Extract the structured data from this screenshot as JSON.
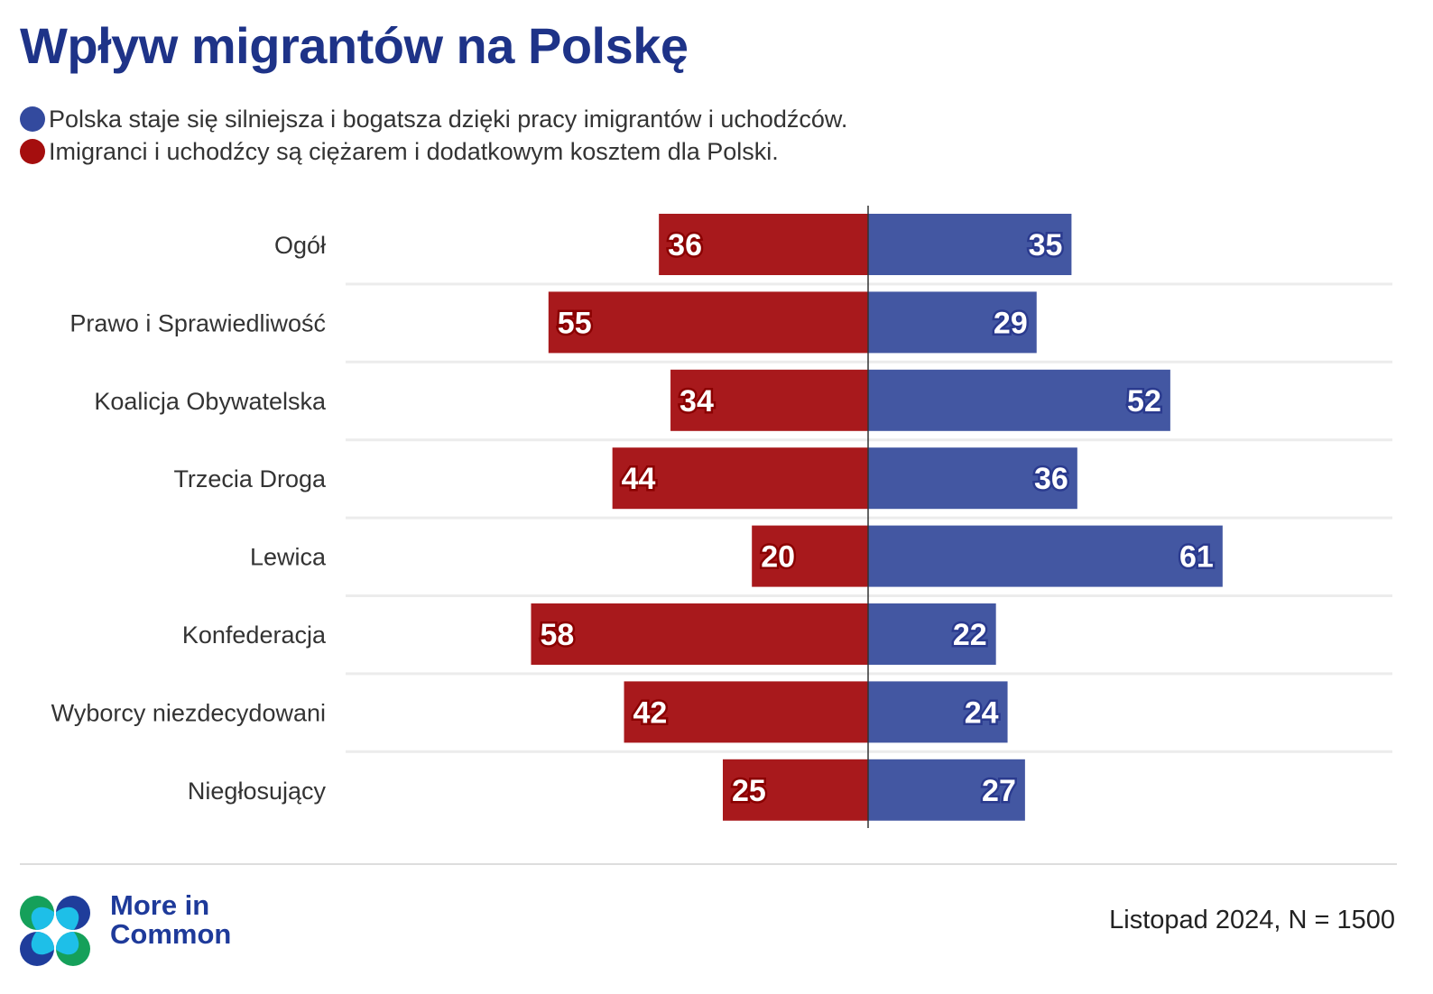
{
  "header": {
    "title": "Wpływ migrantów na Polskę"
  },
  "legend": [
    {
      "label": "Polska staje się silniejsza i bogatsza dzięki pracy imigrantów i uchodźców.",
      "color": "#334a9e"
    },
    {
      "label": "Imigranci i uchodźcy są ciężarem i dodatkowym kosztem dla Polski.",
      "color": "#a50e0e"
    }
  ],
  "chart_data": {
    "type": "bar",
    "orientation": "horizontal-diverging",
    "title": "Wpływ migrantów na Polskę",
    "categories": [
      "Ogół",
      "Prawo i Sprawiedliwość",
      "Koalicja Obywatelska",
      "Trzecia Droga",
      "Lewica",
      "Konfederacja",
      "Wyborcy niezdecydowani",
      "Niegłosujący"
    ],
    "series": [
      {
        "name": "Imigranci i uchodźcy są ciężarem i dodatkowym kosztem dla Polski.",
        "side": "left",
        "color": "#a8191c",
        "label_stroke": "#8a0000",
        "values": [
          36,
          55,
          34,
          44,
          20,
          58,
          42,
          25
        ]
      },
      {
        "name": "Polska staje się silniejsza i bogatsza dzięki pracy imigrantów i uchodźców.",
        "side": "right",
        "color": "#4357a2",
        "label_stroke": "#2a3a8e",
        "values": [
          35,
          29,
          52,
          36,
          61,
          22,
          24,
          27
        ]
      }
    ],
    "units": "%",
    "xlim": [
      -90,
      90
    ],
    "grid": false,
    "legend_position": "top-left"
  },
  "footer": {
    "brand_line1": "More in",
    "brand_line2": "Common",
    "note": "Listopad 2024, N = 1500"
  }
}
